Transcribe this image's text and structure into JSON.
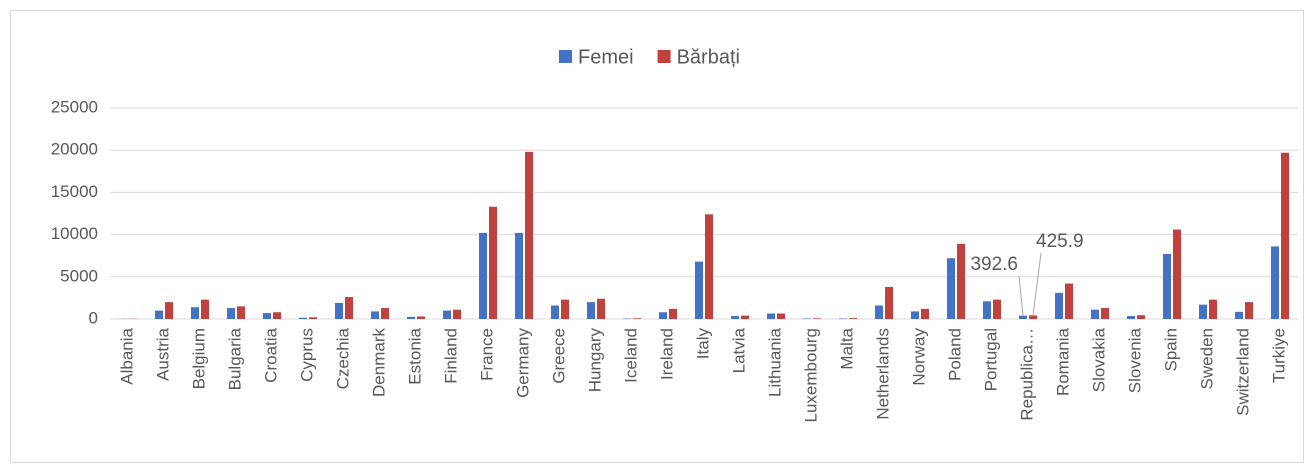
{
  "chart_data": {
    "type": "bar",
    "categories": [
      "Albania",
      "Austria",
      "Belgium",
      "Bulgaria",
      "Croatia",
      "Cyprus",
      "Czechia",
      "Denmark",
      "Estonia",
      "Finland",
      "France",
      "Germany",
      "Greece",
      "Hungary",
      "Iceland",
      "Ireland",
      "Italy",
      "Latvia",
      "Lithuania",
      "Luxembourg",
      "Malta",
      "Netherlands",
      "Norway",
      "Poland",
      "Portugal",
      "Republica…",
      "Romania",
      "Slovakia",
      "Slovenia",
      "Spain",
      "Sweden",
      "Switzerland",
      "Turkiye"
    ],
    "series": [
      {
        "name": "Femei",
        "color": "#4472c4",
        "values": [
          20,
          1000,
          1400,
          1300,
          700,
          150,
          1900,
          900,
          250,
          1000,
          10200,
          10200,
          1600,
          2000,
          50,
          800,
          6800,
          350,
          650,
          60,
          60,
          1600,
          900,
          7200,
          2100,
          392.6,
          3100,
          1100,
          350,
          7700,
          1700,
          850,
          8600
        ],
        "value_labels": [
          null,
          null,
          null,
          null,
          null,
          null,
          null,
          null,
          null,
          null,
          null,
          null,
          null,
          null,
          null,
          null,
          null,
          null,
          null,
          null,
          null,
          null,
          null,
          null,
          null,
          "392.6",
          null,
          null,
          null,
          null,
          null,
          null,
          null
        ]
      },
      {
        "name": "Bărbați",
        "color": "#c0423f",
        "values": [
          30,
          2000,
          2300,
          1500,
          800,
          200,
          2600,
          1300,
          300,
          1100,
          13300,
          19800,
          2300,
          2400,
          80,
          1200,
          12400,
          400,
          650,
          80,
          100,
          3800,
          1200,
          8900,
          2300,
          425.9,
          4200,
          1300,
          450,
          10600,
          2300,
          2000,
          19700
        ],
        "value_labels": [
          null,
          null,
          null,
          null,
          null,
          null,
          null,
          null,
          null,
          null,
          null,
          null,
          null,
          null,
          null,
          null,
          null,
          null,
          null,
          null,
          null,
          null,
          null,
          null,
          null,
          "425.9",
          null,
          null,
          null,
          null,
          null,
          null,
          null
        ]
      }
    ],
    "ylim": [
      0,
      25000
    ],
    "yticks": [
      0,
      5000,
      10000,
      15000,
      20000,
      25000
    ],
    "grid": true,
    "legend": "top"
  }
}
